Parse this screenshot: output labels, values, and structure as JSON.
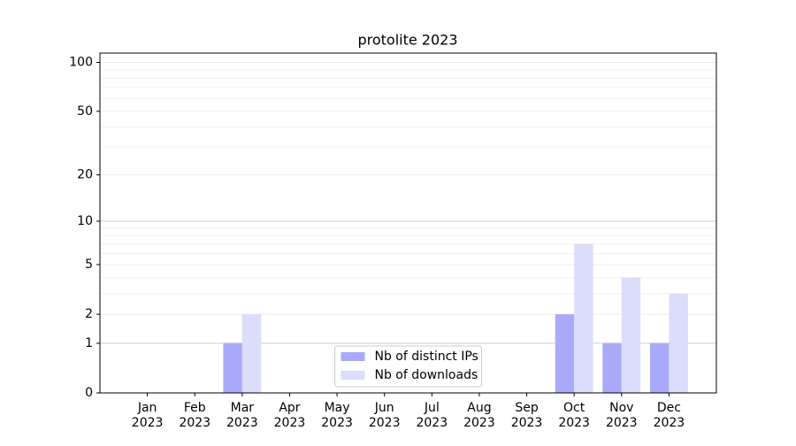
{
  "chart_data": {
    "type": "bar",
    "title": "protolite 2023",
    "categories": [
      "Jan\n2023",
      "Feb\n2023",
      "Mar\n2023",
      "Apr\n2023",
      "May\n2023",
      "Jun\n2023",
      "Jul\n2023",
      "Aug\n2023",
      "Sep\n2023",
      "Oct\n2023",
      "Nov\n2023",
      "Dec\n2023"
    ],
    "series": [
      {
        "name": "Nb of distinct IPs",
        "color": "#aaaafb",
        "values": [
          0,
          0,
          1,
          0,
          0,
          0,
          0,
          0,
          0,
          2,
          1,
          1
        ]
      },
      {
        "name": "Nb of downloads",
        "color": "#dcdcfb",
        "values": [
          0,
          0,
          2,
          0,
          0,
          0,
          0,
          0,
          0,
          7,
          4,
          3
        ]
      }
    ],
    "y_scale": "log1p",
    "ylim": [
      0,
      114
    ],
    "yticks": [
      0,
      1,
      2,
      5,
      10,
      20,
      50,
      100
    ],
    "y_minor_ticks": [
      3,
      4,
      6,
      7,
      8,
      9,
      30,
      40,
      60,
      70,
      80,
      90
    ],
    "y_major_grid": [
      1,
      10
    ],
    "grid": true,
    "legend": "lower center"
  }
}
